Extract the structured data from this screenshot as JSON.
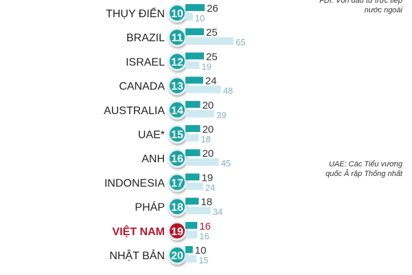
{
  "notes": {
    "fdi_line1": "FDI: Vốn đầu tư trực tiếp",
    "fdi_line2": "nước ngoài",
    "uae_line1": "UAE: Các Tiểu vương",
    "uae_line2": "quốc Ả rập Thống nhất"
  },
  "colors": {
    "primary": "#1aa3a3",
    "secondary": "#cfe9f1",
    "highlight": "#b5162b",
    "secondary_text": "#7fb3c0"
  },
  "chart_data": {
    "type": "bar",
    "orientation": "horizontal",
    "categories": [
      "THỤY ĐIỂN",
      "BRAZIL",
      "ISRAEL",
      "CANADA",
      "AUSTRALIA",
      "UAE*",
      "ANH",
      "INDONESIA",
      "PHÁP",
      "VIỆT NAM",
      "NHẬT BẢN"
    ],
    "ranks": [
      "10",
      "11",
      "12",
      "13",
      "14",
      "15",
      "16",
      "17",
      "18",
      "19",
      "20"
    ],
    "highlight": "VIỆT NAM",
    "series": [
      {
        "values": [
          26,
          25,
          25,
          24,
          20,
          20,
          20,
          19,
          18,
          16,
          10
        ]
      },
      {
        "values": [
          10,
          65,
          19,
          48,
          39,
          18,
          45,
          24,
          34,
          16,
          15
        ]
      }
    ]
  }
}
